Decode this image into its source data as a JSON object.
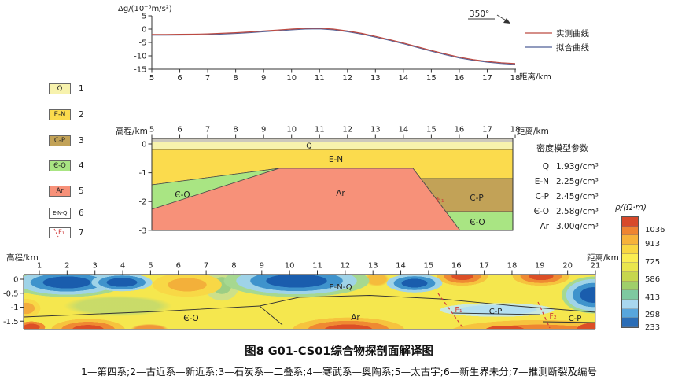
{
  "caption": "图8  G01-CS01综合物探剖面解译图",
  "footnote": "1—第四系;2—古近系—新近系;3—石炭系—二叠系;4—寒武系—奥陶系;5—太古宇;6—新生界未分;7—推测断裂及编号",
  "legend_panel": {
    "items": [
      {
        "code": "Q",
        "num": "1",
        "color": "#f7f2ad",
        "desc": "第四系"
      },
      {
        "code": "E-N",
        "num": "2",
        "color": "#fbdb4d",
        "desc": "古近系—新近系"
      },
      {
        "code": "C-P",
        "num": "3",
        "color": "#c2a257",
        "desc": "石炭系—二叠系"
      },
      {
        "code": "Є-O",
        "num": "4",
        "color": "#a9e583",
        "desc": "寒武系—奥陶系"
      },
      {
        "code": "Ar",
        "num": "5",
        "color": "#f79179",
        "desc": "太古宇"
      },
      {
        "code": "E-N-Q",
        "num": "6",
        "color": "#ffffff",
        "desc": "新生界未分"
      },
      {
        "code": "F₁",
        "num": "7",
        "color": "#ffffff",
        "desc": "推测断裂及编号"
      }
    ]
  },
  "top_chart": {
    "y_axis_label": "Δg/(10⁻⁵m/s²)",
    "x_axis_label": "距离/km",
    "azimuth": "350°",
    "legend": [
      {
        "label": "实测曲线",
        "color": "#bc4a42"
      },
      {
        "label": "拟合曲线",
        "color": "#4f5f96"
      }
    ]
  },
  "mid_section": {
    "elev_axis_label": "高程/km",
    "dist_axis_label": "距离/km",
    "labels": {
      "q": "Q",
      "en": "E-N",
      "eo_left": "Є-O",
      "ar": "Ar",
      "cp": "C-P",
      "eo_right": "Є-O",
      "fault": "F₁"
    },
    "density_params": {
      "title": "密度模型参数",
      "rows": [
        {
          "unit": "Q",
          "value": "1.93g/cm³"
        },
        {
          "unit": "E-N",
          "value": "2.25g/cm³"
        },
        {
          "unit": "C-P",
          "value": "2.45g/cm³"
        },
        {
          "unit": "Є-O",
          "value": "2.58g/cm³"
        },
        {
          "unit": "Ar",
          "value": "3.00g/cm³"
        }
      ]
    }
  },
  "bottom_section": {
    "elev_axis_label": "高程/km",
    "dist_axis_label": "距离/km",
    "labels": {
      "enq": "E-N-Q",
      "ar": "Ar",
      "eo": "Є-O",
      "cp1": "C-P",
      "cp2": "C-P",
      "f1": "F₁",
      "f2": "F₂"
    }
  },
  "colorbar": {
    "title": "ρ/(Ω·m)",
    "ticks": [
      "1036",
      "913",
      "725",
      "586",
      "413",
      "298",
      "233"
    ],
    "colors": [
      "#d7492a",
      "#ee8431",
      "#f6b23a",
      "#f9d742",
      "#fbee52",
      "#e9e64d",
      "#c6d64e",
      "#9fce6a",
      "#7ec9a0",
      "#a9d7ee",
      "#58a6dc",
      "#2b6db6"
    ]
  },
  "chart_data": [
    {
      "type": "line",
      "title": "重力异常曲线(实测与拟合重合)",
      "xlabel": "距离/km",
      "ylabel": "Δg/(10⁻⁵m/s²)",
      "xlim": [
        5,
        18
      ],
      "ylim": [
        -15,
        5
      ],
      "x_ticks": [
        5,
        6,
        7,
        8,
        9,
        10,
        11,
        12,
        13,
        14,
        15,
        16,
        17,
        18
      ],
      "y_ticks": [
        5,
        0,
        -5,
        -10,
        -15
      ],
      "annotation": "350°",
      "x": [
        5,
        5.5,
        6,
        6.5,
        7,
        7.5,
        8,
        8.5,
        9,
        9.5,
        10,
        10.5,
        11,
        11.5,
        12,
        12.5,
        13,
        13.5,
        14,
        14.5,
        15,
        15.5,
        16,
        16.5,
        17,
        17.5,
        18
      ],
      "series": [
        {
          "name": "实测曲线",
          "color": "#bc4a42",
          "values": [
            -2.0,
            -2.0,
            -1.95,
            -1.9,
            -1.8,
            -1.6,
            -1.35,
            -1.05,
            -0.7,
            -0.35,
            0,
            0.3,
            0.35,
            0,
            -0.7,
            -1.6,
            -2.7,
            -3.9,
            -5.2,
            -6.6,
            -8.0,
            -9.3,
            -10.5,
            -11.4,
            -12.1,
            -12.6,
            -12.9
          ]
        },
        {
          "name": "拟合曲线",
          "color": "#4f5f96",
          "values": [
            -2.0,
            -2.0,
            -1.95,
            -1.9,
            -1.8,
            -1.6,
            -1.35,
            -1.05,
            -0.7,
            -0.35,
            0,
            0.3,
            0.35,
            0,
            -0.7,
            -1.6,
            -2.7,
            -3.9,
            -5.2,
            -6.6,
            -8.0,
            -9.3,
            -10.5,
            -11.4,
            -12.1,
            -12.6,
            -12.9
          ]
        }
      ],
      "legend_position": "right"
    },
    {
      "type": "area",
      "title": "密度模型地质剖面",
      "xlabel": "距离/km",
      "ylabel": "高程/km",
      "xlim": [
        5,
        18
      ],
      "ylim": [
        -3,
        0.2
      ],
      "x_ticks": [
        5,
        6,
        7,
        8,
        9,
        10,
        11,
        12,
        13,
        14,
        15,
        16,
        17,
        18
      ],
      "y_ticks": [
        0,
        -1,
        -2,
        -3
      ],
      "units": [
        {
          "name": "Q",
          "density_g_cm3": 1.93,
          "color": "#f7f2ad"
        },
        {
          "name": "E-N",
          "density_g_cm3": 2.25,
          "color": "#fbdb4d"
        },
        {
          "name": "C-P",
          "density_g_cm3": 2.45,
          "color": "#c2a257"
        },
        {
          "name": "Є-O",
          "density_g_cm3": 2.58,
          "color": "#a9e583"
        },
        {
          "name": "Ar",
          "density_g_cm3": 3.0,
          "color": "#f79179"
        }
      ],
      "faults": [
        "F₁"
      ],
      "geometry_notes": [
        "Q薄层约0~-0.15km覆盖全剖面",
        "E-N底界左侧约-1.4km,右侧约-1.2km",
        "Є-O左侧楔形体约5~9.6km(-1.4~-2.3km),右侧断层以东-2.35km以下",
        "Ar顶面9.6~14.4km抬升至约-0.85km,沿F₁向右下至-3km",
        "C-P位于F₁以东约-1.2~-2.35km"
      ]
    },
    {
      "type": "heatmap",
      "title": "视电阻率断面与解译",
      "xlabel": "距离/km",
      "ylabel": "高程/km",
      "xlim": [
        0.5,
        21
      ],
      "ylim": [
        -1.65,
        0
      ],
      "x_ticks": [
        1,
        2,
        3,
        4,
        5,
        6,
        7,
        8,
        9,
        10,
        11,
        12,
        13,
        14,
        15,
        16,
        17,
        18,
        19,
        20,
        21
      ],
      "y_ticks": [
        0,
        -0.5,
        -1,
        -1.5
      ],
      "colorbar_label": "ρ/(Ω·m)",
      "colorbar_ticks": [
        1036,
        913,
        725,
        586,
        413,
        298,
        233
      ],
      "annotations": [
        "E-N-Q",
        "Ar",
        "Є-O",
        "C-P",
        "C-P",
        "F₁",
        "F₂"
      ],
      "zones": [
        {
          "resistivity": "low-blue",
          "x_km": [
            0.5,
            4.3
          ],
          "elev_km": [
            0,
            -0.6
          ]
        },
        {
          "resistivity": "low-blue",
          "x_km": [
            8.6,
            12.6
          ],
          "elev_km": [
            0,
            -0.7
          ]
        },
        {
          "resistivity": "low-blue",
          "x_km": [
            13.8,
            15.2
          ],
          "elev_km": [
            -0.1,
            -0.7
          ]
        },
        {
          "resistivity": "low-blue",
          "x_km": [
            20.3,
            21
          ],
          "elev_km": [
            -0.2,
            -1.1
          ]
        },
        {
          "resistivity": "mid-low",
          "x_km": [
            15.5,
            19.5
          ],
          "elev_km": [
            -0.9,
            -1.3
          ]
        },
        {
          "resistivity": "high-red",
          "x_km": [
            15.7,
            17
          ],
          "elev_km": [
            0,
            -0.4
          ]
        },
        {
          "resistivity": "high-red",
          "x_km": [
            18.4,
            19.6
          ],
          "elev_km": [
            0,
            -0.4
          ]
        },
        {
          "resistivity": "high-red",
          "x_km": [
            1.5,
            4
          ],
          "elev_km": [
            -1.3,
            -1.65
          ]
        },
        {
          "resistivity": "high-red",
          "x_km": [
            10.5,
            13.5
          ],
          "elev_km": [
            -1.3,
            -1.65
          ]
        },
        {
          "resistivity": "high-red",
          "x_km": [
            16,
            21
          ],
          "elev_km": [
            -1.3,
            -1.65
          ]
        }
      ]
    }
  ]
}
